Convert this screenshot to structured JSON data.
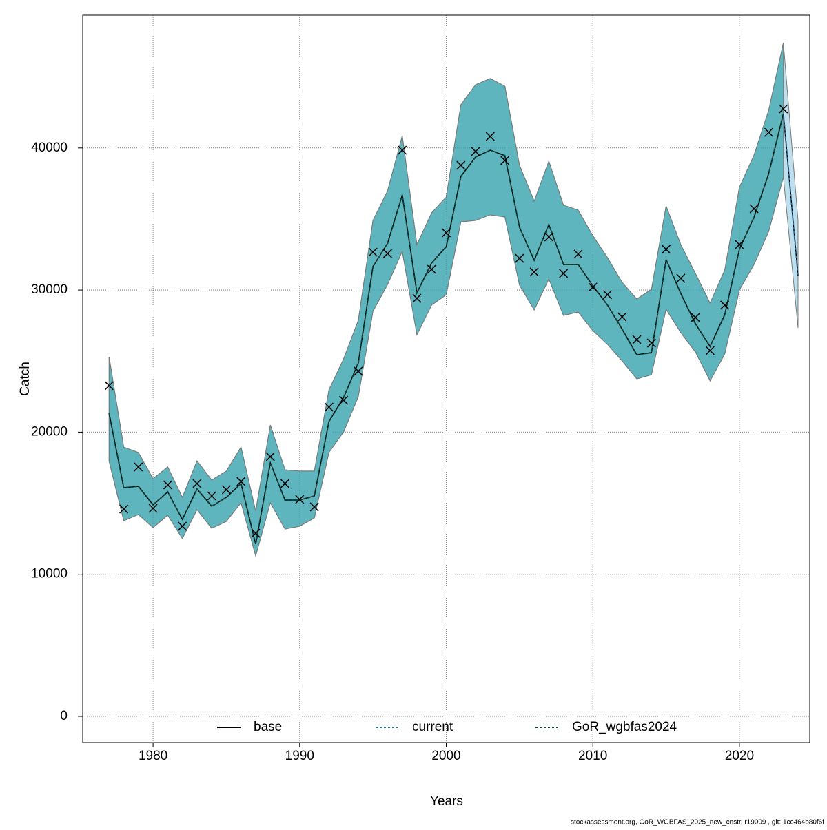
{
  "chart_data": {
    "type": "line",
    "x_label": "Years",
    "y_label": "Catch",
    "footnote": "stockassessment.org, GoR_WGBFAS_2025_new_cnstr, r19009 , git: 1cc464b80f6f",
    "x": [
      1977,
      1978,
      1979,
      1980,
      1981,
      1982,
      1983,
      1984,
      1985,
      1986,
      1987,
      1988,
      1989,
      1990,
      1991,
      1992,
      1993,
      1994,
      1995,
      1996,
      1997,
      1998,
      1999,
      2000,
      2001,
      2002,
      2003,
      2004,
      2005,
      2006,
      2007,
      2008,
      2009,
      2010,
      2011,
      2012,
      2013,
      2014,
      2015,
      2016,
      2017,
      2018,
      2019,
      2020,
      2021,
      2022,
      2023,
      2024
    ],
    "xlim": [
      1975.2,
      2024.8
    ],
    "xticks": [
      1980,
      1990,
      2000,
      2010,
      2020
    ],
    "ylim": [
      -1842,
      49345
    ],
    "yticks": [
      0,
      10000,
      20000,
      30000,
      40000
    ],
    "grid": true,
    "legend": "bottom",
    "series": [
      {
        "name": "base",
        "color": "#000000",
        "dash": "solid",
        "values": [
          21330,
          16090,
          16190,
          14880,
          15800,
          13860,
          16000,
          14780,
          15410,
          16380,
          12120,
          17840,
          15220,
          15220,
          15510,
          20750,
          22440,
          24870,
          31650,
          33300,
          36690,
          29810,
          31900,
          33060,
          38000,
          39360,
          39840,
          39460,
          34420,
          32090,
          34610,
          31800,
          31800,
          30300,
          28940,
          27240,
          25450,
          25590,
          32140,
          29760,
          27630,
          26030,
          28260,
          32870,
          35140,
          38200,
          42410,
          31020
        ]
      },
      {
        "name": "current",
        "color": "#1f6f9f",
        "band_color": "rgba(135,196,224,0.55)",
        "dash": "dotted",
        "values": [
          21330,
          16090,
          16190,
          14880,
          15800,
          13860,
          16000,
          14780,
          15410,
          16380,
          12120,
          17840,
          15220,
          15220,
          15510,
          20750,
          22440,
          24870,
          31650,
          33300,
          36690,
          29810,
          31900,
          33060,
          38000,
          39360,
          39840,
          39460,
          34420,
          32090,
          34610,
          31800,
          31800,
          30300,
          28940,
          27240,
          25450,
          25590,
          32140,
          29760,
          27630,
          26030,
          28260,
          32870,
          35140,
          38200,
          42410,
          31020
        ],
        "upper": [
          25300,
          18950,
          18570,
          16720,
          17550,
          15410,
          17980,
          16630,
          17260,
          18950,
          14450,
          20500,
          17350,
          17260,
          17260,
          22980,
          25160,
          27870,
          34900,
          36990,
          40860,
          33200,
          35430,
          36550,
          43040,
          44450,
          44890,
          44350,
          38780,
          36260,
          39070,
          35970,
          35630,
          33830,
          32280,
          30540,
          29370,
          30050,
          35920,
          33200,
          31170,
          29080,
          31410,
          37230,
          39510,
          42660,
          47410,
          34900
        ],
        "lower": [
          17940,
          13770,
          14200,
          13280,
          14150,
          12510,
          14540,
          13230,
          13720,
          15030,
          11290,
          15030,
          13180,
          13380,
          13960,
          18570,
          20020,
          22490,
          28500,
          30390,
          32720,
          26850,
          28940,
          29670,
          34800,
          34900,
          35290,
          35140,
          30340,
          28600,
          30780,
          28210,
          28450,
          27140,
          26180,
          25010,
          23750,
          24040,
          28650,
          27000,
          25640,
          23610,
          25500,
          30000,
          31800,
          34130,
          37950,
          27340
        ]
      },
      {
        "name": "GoR_wgbfas2024",
        "color": "#0a4a3a",
        "band_color": "rgba(0,139,139,0.5)",
        "dash": "dotted",
        "values": [
          21330,
          16090,
          16190,
          14880,
          15800,
          13860,
          16000,
          14780,
          15410,
          16380,
          12120,
          17840,
          15220,
          15220,
          15510,
          20750,
          22440,
          24870,
          31650,
          33300,
          36690,
          29810,
          31900,
          33060,
          38000,
          39360,
          39840,
          39460,
          34420,
          32090,
          34610,
          31800,
          31800,
          30300,
          28940,
          27240,
          25450,
          25590,
          32140,
          29760,
          27630,
          26030,
          28260,
          32870,
          35140,
          38200,
          42410,
          null
        ],
        "upper": [
          25300,
          18950,
          18570,
          16720,
          17550,
          15410,
          17980,
          16630,
          17260,
          18950,
          14450,
          20500,
          17350,
          17260,
          17260,
          22980,
          25160,
          27870,
          34900,
          36990,
          40860,
          33200,
          35430,
          36550,
          43040,
          44450,
          44890,
          44350,
          38780,
          36260,
          39070,
          35970,
          35630,
          33830,
          32280,
          30540,
          29370,
          30050,
          35920,
          33200,
          31170,
          29080,
          31410,
          37230,
          39510,
          42660,
          47410,
          null
        ],
        "lower": [
          17940,
          13770,
          14200,
          13280,
          14150,
          12510,
          14540,
          13230,
          13720,
          15030,
          11290,
          15030,
          13180,
          13380,
          13960,
          18570,
          20020,
          22490,
          28500,
          30390,
          32720,
          26850,
          28940,
          29670,
          34800,
          34900,
          35290,
          35140,
          30340,
          28600,
          30780,
          28210,
          28450,
          27140,
          26180,
          25010,
          23750,
          24040,
          28650,
          27000,
          25640,
          23610,
          25500,
          30000,
          31800,
          34130,
          37950,
          null
        ]
      }
    ],
    "observations": {
      "marker": "x",
      "color": "#000000",
      "values": [
        23270,
        14590,
        17550,
        14640,
        16290,
        13380,
        16380,
        15510,
        15950,
        16530,
        12890,
        18270,
        16380,
        15270,
        14740,
        21760,
        22250,
        24290,
        32670,
        32570,
        39840,
        29420,
        31460,
        34030,
        38780,
        39750,
        40810,
        39120,
        32230,
        31270,
        33740,
        31170,
        32530,
        30200,
        29670,
        28110,
        26510,
        26270,
        32870,
        30830,
        28070,
        25740,
        28940,
        33200,
        35720,
        41100,
        42750,
        null
      ]
    }
  }
}
